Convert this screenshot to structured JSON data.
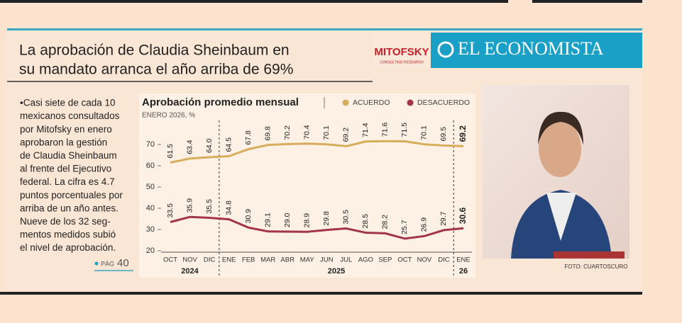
{
  "headline": [
    "La aprobación de Claudia Sheinbaum en",
    "su mandato arranca el año arriba de 69%"
  ],
  "logos": {
    "pollster": "MITOFSKY",
    "pollster_tagline": "CONSULTING RESEARCH",
    "newspaper": "EL ECONOMISTA"
  },
  "article": {
    "lines": [
      "•Casi siete de cada 10",
      "mexicanos consultados",
      "por Mitofsky en enero",
      "aprobaron la gestión",
      "de Claudia Sheinbaum",
      "al frente del Ejecutivo",
      "federal. La cifra es 4.7",
      "puntos porcentuales por",
      "arriba de un año antes.",
      "Nueve de los 32 seg-",
      "mentos medidos subió",
      "el nivel de aprobación."
    ],
    "page_ref": {
      "label": "PÁG",
      "number": "40"
    }
  },
  "photo_credit": "FOTO: CUARTOSCURO",
  "chart_data": {
    "type": "line",
    "title": "Aprobación promedio mensual",
    "subtitle": "ENERO 2026, %",
    "categories": [
      "OCT",
      "NOV",
      "DIC",
      "ENE",
      "FEB",
      "MAR",
      "ABR",
      "MAY",
      "JUN",
      "JUL",
      "AGO",
      "SEP",
      "OCT",
      "NOV",
      "DIC",
      "ENE"
    ],
    "category_groups": [
      {
        "label": "2024",
        "span": 3
      },
      {
        "label": "2025",
        "span": 12
      },
      {
        "label": "26",
        "span": 1
      }
    ],
    "series": [
      {
        "name": "ACUERDO",
        "color": "#d6ad5b",
        "values": [
          61.5,
          63.4,
          64.0,
          64.5,
          67.8,
          69.8,
          70.2,
          70.4,
          70.1,
          69.2,
          71.4,
          71.6,
          71.5,
          70.1,
          69.5,
          69.2
        ],
        "value_labels": [
          "61.5",
          "63.4",
          "64.0",
          "64.5",
          "67.8",
          "69.8",
          "70.2",
          "70.4",
          "70.1",
          "69.2",
          "71.4",
          "71.6",
          "71.5",
          "70.1",
          "69.5",
          "69.2"
        ]
      },
      {
        "name": "DESACUERDO",
        "color": "#a3344b",
        "values": [
          33.5,
          35.9,
          35.5,
          34.8,
          30.9,
          29.1,
          29.0,
          28.9,
          29.8,
          30.5,
          28.5,
          28.2,
          25.7,
          26.9,
          29.7,
          30.6
        ],
        "value_labels": [
          "33.5",
          "35.9",
          "35.5",
          "34.8",
          "30.9",
          "29.1",
          "29.0",
          "28.9",
          "29.8",
          "30.5",
          "28.5",
          "28.2",
          "25.7",
          "26.9",
          "29.7",
          "30.6"
        ]
      }
    ],
    "ylim": [
      20,
      78
    ],
    "yticks": [
      20,
      30,
      40,
      50,
      60,
      70
    ],
    "grid": false,
    "legend": "top-right"
  }
}
